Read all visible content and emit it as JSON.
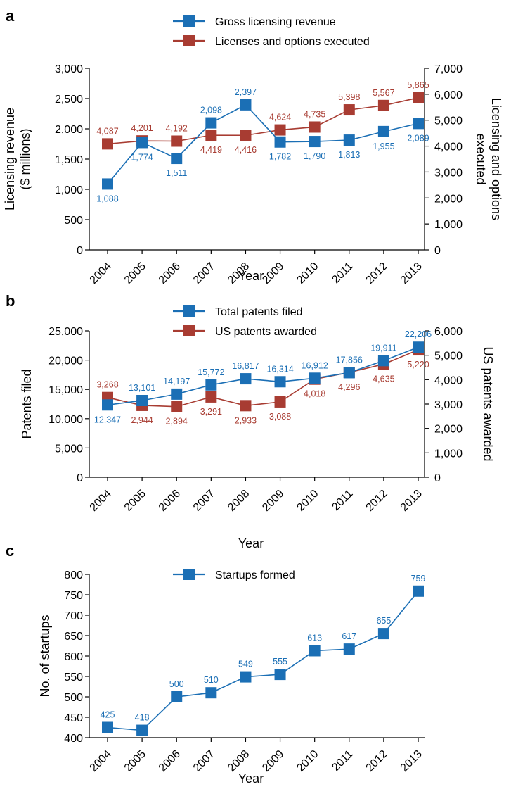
{
  "chart_data": [
    {
      "panel": "a",
      "type": "line",
      "xlabel": "Year",
      "ylabel_left": "Licensing revenue ($ millions)",
      "ylabel_right": "Licensing and options executed",
      "categories": [
        "2004",
        "2005",
        "2006",
        "2007",
        "2008",
        "2009",
        "2010",
        "2011",
        "2012",
        "2013"
      ],
      "ylim_left": [
        0,
        3000
      ],
      "yticks_left": [
        "0",
        "500",
        "1,000",
        "1,500",
        "2,000",
        "2,500",
        "3,000"
      ],
      "ylim_right": [
        0,
        7000
      ],
      "yticks_right": [
        "0",
        "1,000",
        "2,000",
        "3,000",
        "4,000",
        "5,000",
        "6,000",
        "7,000"
      ],
      "legend_position": "top-center",
      "series": [
        {
          "name": "Gross licensing revenue",
          "axis": "left",
          "color": "#1b6fb5",
          "values": [
            1088,
            1774,
            1511,
            2098,
            2397,
            1782,
            1790,
            1813,
            1955,
            2089
          ],
          "labels": [
            "1,088",
            "1,774",
            "1,511",
            "2,098",
            "2,397",
            "1,782",
            "1,790",
            "1,813",
            "1,955",
            "2,089"
          ],
          "label_side": [
            "below",
            "below",
            "below",
            "above",
            "above",
            "below",
            "below",
            "below",
            "below",
            "below"
          ]
        },
        {
          "name": "Licenses and options executed",
          "axis": "right",
          "color": "#a83c32",
          "values": [
            4087,
            4201,
            4192,
            4419,
            4416,
            4624,
            4735,
            5398,
            5567,
            5865
          ],
          "labels": [
            "4,087",
            "4,201",
            "4,192",
            "4,419",
            "4,416",
            "4,624",
            "4,735",
            "5,398",
            "5,567",
            "5,865"
          ],
          "label_side": [
            "above",
            "above",
            "above",
            "below",
            "below",
            "above",
            "above",
            "above",
            "above",
            "above"
          ]
        }
      ]
    },
    {
      "panel": "b",
      "type": "line",
      "xlabel": "Year",
      "ylabel_left": "Patents filed",
      "ylabel_right": "US patents awarded",
      "categories": [
        "2004",
        "2005",
        "2006",
        "2007",
        "2008",
        "2009",
        "2010",
        "2011",
        "2012",
        "2013"
      ],
      "ylim_left": [
        0,
        25000
      ],
      "yticks_left": [
        "0",
        "5,000",
        "10,000",
        "15,000",
        "20,000",
        "25,000"
      ],
      "ylim_right": [
        0,
        6000
      ],
      "yticks_right": [
        "0",
        "1,000",
        "2,000",
        "3,000",
        "4,000",
        "5,000",
        "6,000"
      ],
      "legend_position": "top-center",
      "series": [
        {
          "name": "Total patents filed",
          "axis": "left",
          "color": "#1b6fb5",
          "values": [
            12347,
            13101,
            14197,
            15772,
            16817,
            16314,
            16912,
            17856,
            19911,
            22206
          ],
          "labels": [
            "12,347",
            "13,101",
            "14,197",
            "15,772",
            "16,817",
            "16,314",
            "16,912",
            "17,856",
            "19,911",
            "22,206"
          ],
          "label_side": [
            "below",
            "above",
            "above",
            "above",
            "above",
            "above",
            "above",
            "above",
            "above",
            "above"
          ]
        },
        {
          "name": "US patents awarded",
          "axis": "right",
          "color": "#a83c32",
          "values": [
            3268,
            2944,
            2894,
            3291,
            2933,
            3088,
            4018,
            4296,
            4635,
            5220
          ],
          "labels": [
            "3,268",
            "2,944",
            "2,894",
            "3,291",
            "2,933",
            "3,088",
            "4,018",
            "4,296",
            "4,635",
            "5,220"
          ],
          "label_side": [
            "above",
            "below",
            "below",
            "below",
            "below",
            "below",
            "below",
            "below",
            "below",
            "below"
          ]
        }
      ]
    },
    {
      "panel": "c",
      "type": "line",
      "xlabel": "Year",
      "ylabel_left": "No. of startups",
      "categories": [
        "2004",
        "2005",
        "2006",
        "2007",
        "2008",
        "2009",
        "2010",
        "2011",
        "2012",
        "2013"
      ],
      "ylim_left": [
        400,
        800
      ],
      "yticks_left": [
        "400",
        "450",
        "500",
        "550",
        "600",
        "650",
        "700",
        "750",
        "800"
      ],
      "legend_position": "top-center",
      "series": [
        {
          "name": "Startups formed",
          "axis": "left",
          "color": "#1b6fb5",
          "values": [
            425,
            418,
            500,
            510,
            549,
            555,
            613,
            617,
            655,
            759
          ],
          "labels": [
            "425",
            "418",
            "500",
            "510",
            "549",
            "555",
            "613",
            "617",
            "655",
            "759"
          ],
          "label_side": [
            "above",
            "above",
            "above",
            "above",
            "above",
            "above",
            "above",
            "above",
            "above",
            "above"
          ]
        }
      ]
    }
  ]
}
